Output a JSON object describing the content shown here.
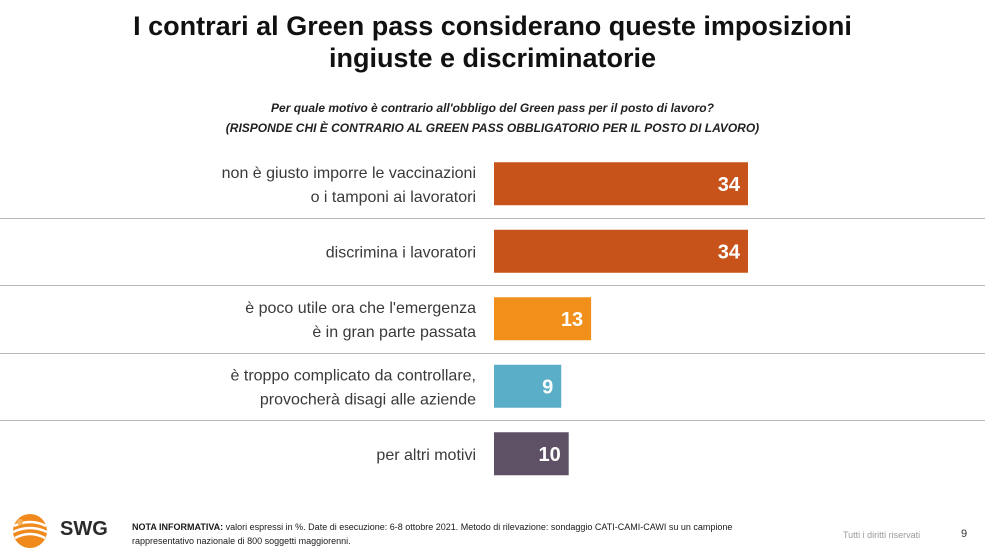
{
  "header": {
    "title_line1": "I contrari al Green pass considerano queste imposizioni",
    "title_line2": "ingiuste e discriminatorie",
    "question": "Per quale motivo è contrario all'obbligo del Green pass per il posto di lavoro?",
    "respondents": "(RISPONDE CHI È CONTRARIO AL GREEN PASS OBBLIGATORIO PER IL POSTO DI LAVORO)"
  },
  "chart_data": {
    "type": "bar",
    "orientation": "horizontal",
    "categories": [
      [
        "non è giusto imporre le vaccinazioni",
        "o i tamponi ai lavoratori"
      ],
      [
        "discrimina i lavoratori"
      ],
      [
        "è poco utile ora che l'emergenza",
        "è in gran parte passata"
      ],
      [
        "è troppo complicato da controllare,",
        "provocherà disagi alle aziende"
      ],
      [
        "per altri motivi"
      ]
    ],
    "values": [
      34,
      34,
      13,
      9,
      10
    ],
    "colors": [
      "#c8531a",
      "#c8531a",
      "#f0901a",
      "#5aaec8",
      "#5e5166"
    ],
    "value_labels": [
      "34",
      "34",
      "13",
      "9",
      "10"
    ],
    "xlim": [
      0,
      60
    ],
    "unit": "%"
  },
  "footer": {
    "logo_text": "SWG",
    "note_label": "NOTA INFORMATIVA:",
    "note_text": " valori espressi in %. Date di esecuzione: 6-8 ottobre 2021. Metodo di rilevazione: sondaggio CATI-CAMI-CAWI su un campione rappresentativo nazionale di 800 soggetti maggiorenni.",
    "rights": "Tutti i diritti riservati",
    "page_number": "9"
  }
}
